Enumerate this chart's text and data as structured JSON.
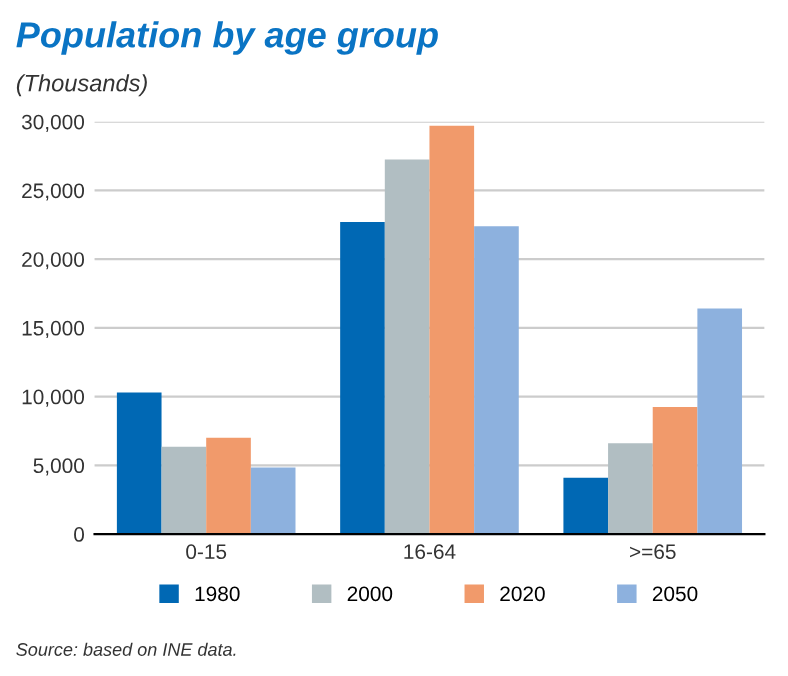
{
  "chart_data": {
    "type": "bar",
    "title": "Population by age group",
    "subtitle": "(Thousands)",
    "categories": [
      "0-15",
      "16-64",
      ">=65"
    ],
    "series": [
      {
        "name": "1980",
        "color": "#0068b4",
        "values": [
          10300,
          22700,
          4100
        ]
      },
      {
        "name": "2000",
        "color": "#b1bec2",
        "values": [
          6350,
          27250,
          6600
        ]
      },
      {
        "name": "2020",
        "color": "#f19a6b",
        "values": [
          7000,
          29700,
          9250
        ]
      },
      {
        "name": "2050",
        "color": "#8db1de",
        "values": [
          4850,
          22400,
          16400
        ]
      }
    ],
    "ylim": [
      0,
      30000
    ],
    "yticks": [
      {
        "value": 0,
        "label": "0"
      },
      {
        "value": 5000,
        "label": "5,000"
      },
      {
        "value": 10000,
        "label": "10,000"
      },
      {
        "value": 15000,
        "label": "15,000"
      },
      {
        "value": 20000,
        "label": "20,000"
      },
      {
        "value": 25000,
        "label": "25,000"
      },
      {
        "value": 30000,
        "label": "30,000"
      }
    ],
    "grid": "y",
    "legend": "bottom",
    "annotations": [
      "Source: based on INE data."
    ]
  }
}
